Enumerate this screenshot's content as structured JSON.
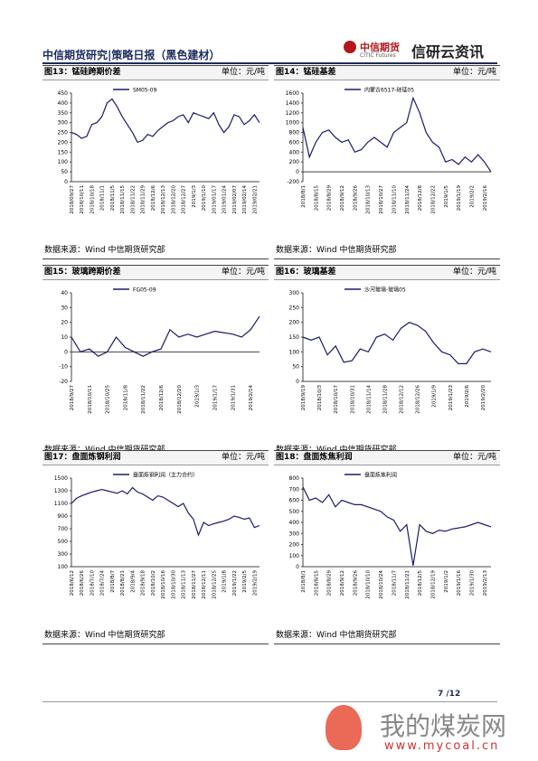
{
  "header": {
    "title": "中信期货研究|策略日报（黑色建材）",
    "logo": "中信期货",
    "logo_en": "CITIC Futures",
    "brand": "信研云资讯"
  },
  "chart_data": [
    {
      "type": "line",
      "title": "图13：锰硅跨期价差",
      "unit": "单位：元/吨",
      "source": "数据来源：Wind  中信期货研究部",
      "categories": [
        "2018/09/27",
        null,
        "2018/10/11",
        null,
        "2018/10/18",
        null,
        "2018/11/1",
        null,
        "2018/11/5",
        null,
        "2018/11/15",
        null,
        "2018/11/22",
        null,
        "2018/11/29",
        null,
        "2018/12/6",
        null,
        "2018/12/13",
        null,
        "2018/12/20",
        null,
        "2018/12/27",
        null,
        "2019/1/3",
        null,
        "2019/1/10",
        null,
        "2019/01/17",
        null,
        "2019/01/24",
        null,
        "2019/02/07",
        null,
        "2019/02/14",
        null,
        "2019/02/21",
        null
      ],
      "series": [
        {
          "name": "SM05-09",
          "color": "#1a1a6e",
          "values": [
            250,
            240,
            220,
            230,
            290,
            300,
            330,
            400,
            420,
            380,
            330,
            290,
            250,
            200,
            210,
            240,
            230,
            260,
            280,
            300,
            310,
            330,
            340,
            300,
            350,
            340,
            330,
            320,
            350,
            290,
            250,
            280,
            340,
            330,
            290,
            310,
            340,
            300
          ]
        }
      ],
      "ylim": [
        0,
        450
      ],
      "yticks": [
        0,
        50,
        100,
        150,
        200,
        250,
        300,
        350,
        400,
        450
      ]
    },
    {
      "type": "line",
      "title": "图14：锰硅基差",
      "unit": "单位：元/吨",
      "source": "数据来源：Wind  中信期货研究部",
      "categories": [
        "2018/8/1",
        null,
        "2018/8/15",
        null,
        "2018/8/29",
        null,
        "2018/9/12",
        null,
        "2018/9/26",
        null,
        "2018/10/13",
        null,
        "2018/10/27",
        null,
        "2018/11/10",
        null,
        "2018/11/24",
        null,
        "2018/12/8",
        null,
        "2018/12/22",
        null,
        "2019/1/5",
        null,
        "2019/1/19",
        null,
        "2019/2/2",
        null,
        "2019/2/16",
        null
      ],
      "series": [
        {
          "name": "内蒙古6517-硅锰05",
          "color": "#1a1a6e",
          "values": [
            900,
            300,
            600,
            800,
            850,
            700,
            600,
            650,
            400,
            450,
            600,
            700,
            600,
            500,
            800,
            900,
            1000,
            1500,
            1200,
            800,
            600,
            500,
            200,
            250,
            150,
            300,
            200,
            350,
            200,
            0
          ]
        }
      ],
      "ylim": [
        -200,
        1600
      ],
      "yticks": [
        -200,
        0,
        200,
        400,
        600,
        800,
        1000,
        1200,
        1400,
        1600
      ]
    },
    {
      "type": "line",
      "title": "图15：玻璃跨期价差",
      "unit": "单位：元/吨",
      "source": "数据来源：Wind  中信期货研究部",
      "categories": [
        "2018/9/27",
        null,
        "2018/10/11",
        null,
        "2018/10/25",
        null,
        "2018/11/8",
        null,
        "2018/11/22",
        null,
        "2018/12/6",
        null,
        "2018/12/20",
        null,
        "2019/1/3",
        null,
        "2019/1/17",
        null,
        "2019/1/31",
        null,
        "2019/2/14",
        null
      ],
      "series": [
        {
          "name": "FG05-09",
          "color": "#1a1a6e",
          "values": [
            10,
            0,
            2,
            -3,
            0,
            10,
            3,
            0,
            -3,
            0,
            2,
            15,
            10,
            12,
            10,
            12,
            14,
            13,
            12,
            10,
            15,
            24
          ]
        }
      ],
      "ylim": [
        -20,
        40
      ],
      "yticks": [
        -20,
        -10,
        0,
        10,
        20,
        30,
        40
      ]
    },
    {
      "type": "line",
      "title": "图16：玻璃基差",
      "unit": "单位：元/吨",
      "source": "数据来源：Wind  中信期货研究部",
      "categories": [
        "2018/9/19",
        null,
        "2018/10/3",
        null,
        "2018/10/17",
        null,
        "2018/10/31",
        null,
        "2018/11/14",
        null,
        "2018/11/28",
        null,
        "2018/12/12",
        null,
        "2018/12/26",
        null,
        "2019/1/9",
        null,
        "2019/1/23",
        null,
        "2019/2/6",
        null,
        "2019/2/20",
        null
      ],
      "series": [
        {
          "name": "沙河玻璃-玻璃05",
          "color": "#1a1a6e",
          "values": [
            150,
            140,
            150,
            90,
            120,
            65,
            70,
            110,
            100,
            150,
            160,
            140,
            180,
            200,
            190,
            170,
            130,
            100,
            90,
            60,
            60,
            100,
            110,
            100
          ]
        }
      ],
      "ylim": [
        0,
        300
      ],
      "yticks": [
        0,
        50,
        100,
        150,
        200,
        250,
        300
      ]
    },
    {
      "type": "line",
      "title": "图17：盘面炼钢利润",
      "unit": "单位：元/吨",
      "source": "数据来源：Wind  中信期货研究部",
      "categories": [
        "2018/6/12",
        null,
        "2018/6/26",
        null,
        "2018/7/10",
        null,
        "2018/7/24",
        null,
        "2018/8/7",
        null,
        "2018/8/21",
        null,
        "2018/9/4",
        null,
        "2018/9/18",
        null,
        "2018/10/2",
        null,
        "2018/10/16",
        null,
        "2018/10/30",
        null,
        "2018/11/13",
        null,
        "2018/11/27",
        null,
        "2018/12/11",
        null,
        "2018/12/25",
        null,
        "2019/1/8",
        null,
        "2019/1/22",
        null,
        "2019/2/5",
        null,
        "2019/2/19",
        null
      ],
      "series": [
        {
          "name": "盘面炼钢利润（主力合约）",
          "color": "#1a1a6e",
          "values": [
            1100,
            1180,
            1220,
            1250,
            1280,
            1300,
            1320,
            1300,
            1280,
            1260,
            1300,
            1250,
            1350,
            1280,
            1250,
            1200,
            1150,
            1220,
            1200,
            1150,
            1100,
            1050,
            1100,
            950,
            850,
            600,
            800,
            750,
            780,
            800,
            820,
            850,
            900,
            880,
            850,
            870,
            720,
            750
          ]
        }
      ],
      "ylim": [
        100,
        1500
      ],
      "yticks": [
        100,
        300,
        500,
        700,
        900,
        1100,
        1300,
        1500
      ]
    },
    {
      "type": "line",
      "title": "图18：盘面炼焦利润",
      "unit": "单位：元/吨",
      "source": "数据来源：Wind  中信期货研究部",
      "categories": [
        "2018/8/1",
        null,
        "2018/8/15",
        null,
        "2018/8/29",
        null,
        "2018/9/12",
        null,
        "2018/9/26",
        null,
        "2018/10/10",
        null,
        "2018/10/24",
        null,
        "2018/11/7",
        null,
        "2018/11/21",
        null,
        "2018/12/5",
        null,
        "2018/12/19",
        null,
        "2019/1/2",
        null,
        "2019/1/16",
        null,
        "2019/1/30",
        null,
        "2019/2/13",
        null
      ],
      "series": [
        {
          "name": "盘面炼焦利润",
          "color": "#1a1a6e",
          "values": [
            720,
            600,
            620,
            580,
            650,
            540,
            600,
            580,
            560,
            560,
            540,
            520,
            500,
            450,
            420,
            320,
            380,
            10,
            380,
            320,
            300,
            330,
            320,
            340,
            350,
            360,
            380,
            400,
            380,
            360
          ]
        }
      ],
      "ylim": [
        0,
        800
      ],
      "yticks": [
        0,
        100,
        200,
        300,
        400,
        500,
        600,
        700,
        800
      ]
    }
  ],
  "footer": {
    "page": "7 /12"
  },
  "watermark": {
    "name": "我的煤炭网",
    "url": "www.mycoal.cn"
  }
}
